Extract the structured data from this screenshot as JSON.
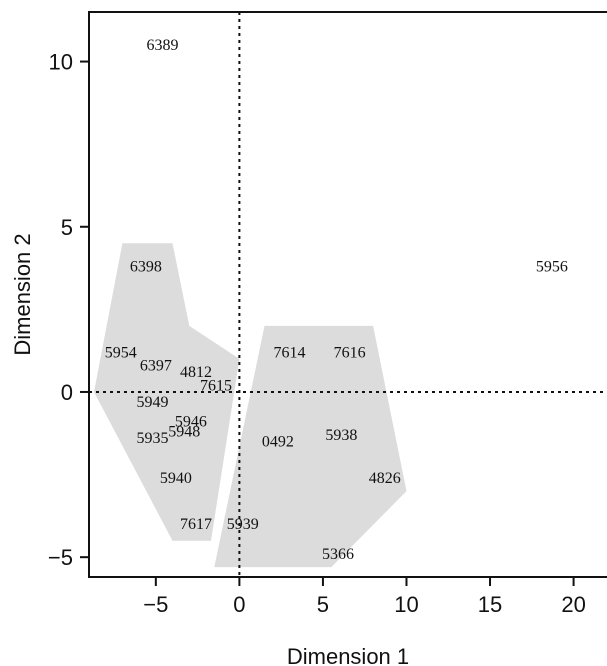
{
  "chart_data": {
    "type": "scatter",
    "xlabel": "Dimension 1",
    "ylabel": "Dimension 2",
    "xlim": [
      -9.0,
      22.0
    ],
    "ylim": [
      -5.6,
      11.5
    ],
    "xticks": [
      -5,
      0,
      5,
      10,
      15,
      20
    ],
    "yticks": [
      -5,
      0,
      5,
      10
    ],
    "xtick_labels": [
      "−5",
      "0",
      "5",
      "10",
      "15",
      "20"
    ],
    "ytick_labels": [
      "−5",
      "0",
      "5",
      "10"
    ],
    "reference_lines": {
      "x": 0,
      "y": 0,
      "style": "dotted"
    },
    "grid": false,
    "hull_color": "#dcdcdc",
    "points": [
      {
        "label": "6389",
        "x": -4.6,
        "y": 10.5
      },
      {
        "label": "6398",
        "x": -5.6,
        "y": 3.8
      },
      {
        "label": "5954",
        "x": -7.1,
        "y": 1.2
      },
      {
        "label": "6397",
        "x": -5.0,
        "y": 0.8
      },
      {
        "label": "4812",
        "x": -2.6,
        "y": 0.6
      },
      {
        "label": "7615",
        "x": -1.4,
        "y": 0.2
      },
      {
        "label": "5949",
        "x": -5.2,
        "y": -0.3
      },
      {
        "label": "5946",
        "x": -2.9,
        "y": -0.9
      },
      {
        "label": "5948",
        "x": -3.3,
        "y": -1.2
      },
      {
        "label": "5935",
        "x": -5.2,
        "y": -1.4
      },
      {
        "label": "5940",
        "x": -3.8,
        "y": -2.6
      },
      {
        "label": "7617",
        "x": -2.6,
        "y": -4.0
      },
      {
        "label": "5939",
        "x": 0.2,
        "y": -4.0
      },
      {
        "label": "7614",
        "x": 3.0,
        "y": 1.2
      },
      {
        "label": "7616",
        "x": 6.6,
        "y": 1.2
      },
      {
        "label": "0492",
        "x": 2.3,
        "y": -1.5
      },
      {
        "label": "5938",
        "x": 6.1,
        "y": -1.3
      },
      {
        "label": "4826",
        "x": 8.7,
        "y": -2.6
      },
      {
        "label": "5366",
        "x": 5.9,
        "y": -4.9
      },
      {
        "label": "5956",
        "x": 18.7,
        "y": 3.8
      }
    ],
    "hulls": [
      {
        "vertices": [
          [
            -7,
            4.5
          ],
          [
            -4,
            4.5
          ],
          [
            -3,
            2
          ],
          [
            0,
            1
          ],
          [
            -1.7,
            -4.5
          ],
          [
            -4,
            -4.5
          ],
          [
            -8.7,
            0
          ]
        ]
      },
      {
        "vertices": [
          [
            1.5,
            2
          ],
          [
            8,
            2
          ],
          [
            10,
            -3
          ],
          [
            5.5,
            -5.3
          ],
          [
            -1.5,
            -5.3
          ]
        ]
      }
    ]
  }
}
